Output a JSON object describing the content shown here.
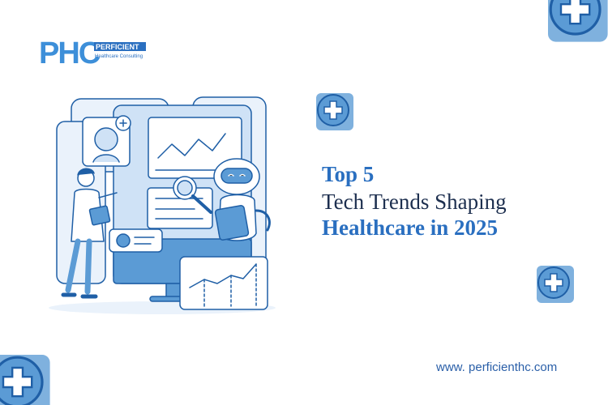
{
  "logo": {
    "mark": "PHC",
    "name": "PERFICIENT",
    "tagline": "Healthcare Consulting"
  },
  "headline": {
    "lines": [
      "Top 5",
      "Tech Trends Shaping",
      "Healthcare in 2025"
    ]
  },
  "website": "www. perficienthc.com"
}
